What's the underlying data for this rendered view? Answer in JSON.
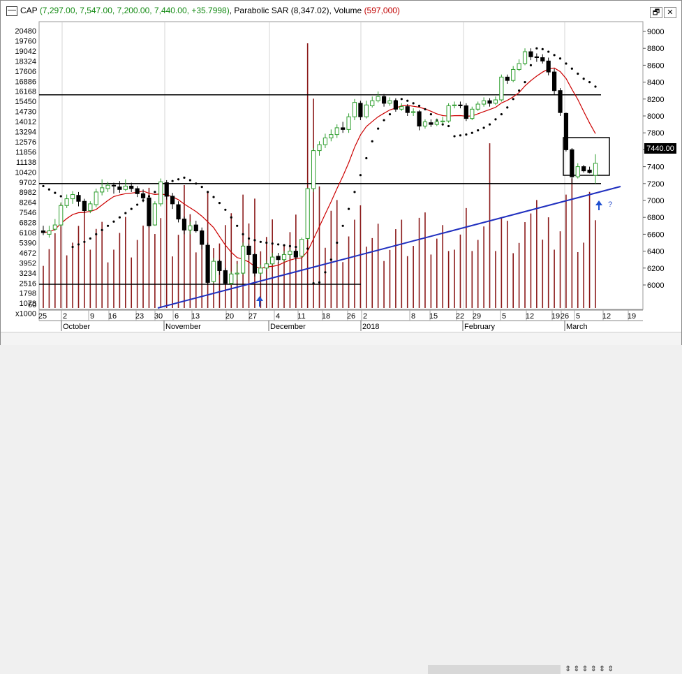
{
  "title": {
    "symbol": "CAP",
    "ohlc": "(7,297.00, 7,547.00, 7,200.00, 7,440.00, +35.7998)",
    "indicator": "Parabolic SAR",
    "indicator_value": "(8,347.02)",
    "volume_label": "Volume",
    "volume_value": "(597,000)"
  },
  "window_buttons": [
    "🗗",
    "✕"
  ],
  "left_axis": {
    "labels": [
      "20480",
      "19760",
      "19042",
      "18324",
      "17606",
      "16886",
      "16168",
      "15450",
      "14730",
      "14012",
      "13294",
      "12576",
      "11856",
      "11138",
      "10420",
      "9702",
      "8982",
      "8264",
      "7546",
      "6828",
      "6108",
      "5390",
      "4672",
      "3952",
      "3234",
      "2516",
      "1798",
      "1078",
      "x1000"
    ],
    "multiplier_tail": "60"
  },
  "right_axis": {
    "labels": [
      "9000",
      "8800",
      "8600",
      "8400",
      "8200",
      "8000",
      "7800",
      "7600",
      "7400",
      "7200",
      "7000",
      "6800",
      "6600",
      "6400",
      "6200",
      "6000"
    ],
    "last_price": "7440.00"
  },
  "date_axis": {
    "day_labels": [
      "25",
      "2",
      "9",
      "16",
      "23",
      "30",
      "6",
      "13",
      "20",
      "27",
      "4",
      "11",
      "18",
      "26",
      "2",
      "8",
      "15",
      "22",
      "29",
      "5",
      "12",
      "19",
      "26",
      "5",
      "12",
      "19"
    ],
    "month_labels": [
      "October",
      "November",
      "December",
      "2018",
      "February",
      "March"
    ]
  },
  "annotation": "?",
  "colors": {
    "up_candle": "#2e9e2e",
    "down_candle": "#000000",
    "volume": "#8b1a1a",
    "moving_average": "#cc0000",
    "trendline": "#1f2fbf",
    "sar": "#000000"
  },
  "bottom_bar_icons": "⇕⇕⇕⇕⇕⇕",
  "chart_data": {
    "type": "candlestick",
    "price_range": [
      5800,
      9100
    ],
    "volume_range": [
      0,
      20480
    ],
    "horizontal_levels": [
      8250,
      7200
    ],
    "candles": [
      [
        6640,
        6620,
        6700,
        6590
      ],
      [
        6600,
        6640,
        6700,
        6560
      ],
      [
        6660,
        6710,
        6780,
        6640
      ],
      [
        6710,
        6940,
        6980,
        6690
      ],
      [
        6940,
        7020,
        7070,
        6910
      ],
      [
        7020,
        7070,
        7110,
        6960
      ],
      [
        7060,
        6990,
        7100,
        6930
      ],
      [
        6990,
        6880,
        7020,
        6850
      ],
      [
        6880,
        6960,
        6990,
        6850
      ],
      [
        6950,
        7100,
        7140,
        6920
      ],
      [
        7100,
        7150,
        7250,
        7060
      ],
      [
        7140,
        7180,
        7220,
        7100
      ],
      [
        7180,
        7170,
        7210,
        7080
      ],
      [
        7160,
        7130,
        7230,
        7090
      ],
      [
        7130,
        7170,
        7250,
        7110
      ],
      [
        7170,
        7140,
        7210,
        7100
      ],
      [
        7140,
        7080,
        7170,
        7040
      ],
      [
        7080,
        7030,
        7130,
        6980
      ],
      [
        7030,
        6700,
        7060,
        6680
      ],
      [
        6710,
        6960,
        6990,
        6700
      ],
      [
        6960,
        7220,
        7260,
        6930
      ],
      [
        7210,
        7050,
        7240,
        7010
      ],
      [
        7050,
        6960,
        7090,
        6900
      ],
      [
        6950,
        6780,
        6990,
        6740
      ],
      [
        6780,
        6650,
        6810,
        6600
      ],
      [
        6650,
        6700,
        6750,
        6600
      ],
      [
        6710,
        6640,
        6760,
        6620
      ],
      [
        6640,
        6480,
        6680,
        6420
      ],
      [
        6470,
        6030,
        6500,
        6000
      ],
      [
        6040,
        6280,
        6320,
        6020
      ],
      [
        6280,
        6170,
        6300,
        6120
      ],
      [
        6170,
        6020,
        6200,
        6000
      ],
      [
        6020,
        6130,
        6160,
        6000
      ],
      [
        6130,
        6140,
        6250,
        6060
      ],
      [
        6140,
        6460,
        6500,
        6120
      ],
      [
        6460,
        6360,
        6490,
        6300
      ],
      [
        6360,
        6140,
        6380,
        6100
      ],
      [
        6140,
        6200,
        6240,
        6110
      ],
      [
        6200,
        6250,
        6290,
        6180
      ],
      [
        6250,
        6330,
        6380,
        6230
      ],
      [
        6340,
        6300,
        6380,
        6260
      ],
      [
        6300,
        6360,
        6400,
        6270
      ],
      [
        6360,
        6400,
        6430,
        6320
      ],
      [
        6400,
        6330,
        6420,
        6290
      ],
      [
        6340,
        6540,
        6560,
        6320
      ],
      [
        6550,
        7140,
        7150,
        6530
      ],
      [
        7140,
        7590,
        7620,
        7100
      ],
      [
        7590,
        7660,
        7700,
        7530
      ],
      [
        7660,
        7740,
        7790,
        7620
      ],
      [
        7740,
        7780,
        7840,
        7700
      ],
      [
        7780,
        7860,
        7900,
        7740
      ],
      [
        7860,
        7840,
        7930,
        7800
      ],
      [
        7840,
        7990,
        8030,
        7800
      ],
      [
        7990,
        8160,
        8200,
        7950
      ],
      [
        8150,
        7990,
        8180,
        7950
      ],
      [
        7990,
        8130,
        8180,
        7970
      ],
      [
        8120,
        8180,
        8230,
        8100
      ],
      [
        8180,
        8230,
        8290,
        8160
      ],
      [
        8230,
        8150,
        8260,
        8110
      ],
      [
        8150,
        8180,
        8220,
        8120
      ],
      [
        8180,
        8080,
        8210,
        8050
      ],
      [
        8080,
        8110,
        8150,
        8060
      ],
      [
        8110,
        8040,
        8140,
        8000
      ],
      [
        8040,
        8050,
        8090,
        8000
      ],
      [
        8050,
        7880,
        8070,
        7830
      ],
      [
        7880,
        7930,
        7960,
        7850
      ],
      [
        7920,
        7900,
        7960,
        7870
      ],
      [
        7900,
        7930,
        7970,
        7880
      ],
      [
        7930,
        7940,
        7990,
        7900
      ],
      [
        7940,
        8120,
        8150,
        7920
      ],
      [
        8120,
        8130,
        8170,
        8090
      ],
      [
        8130,
        8120,
        8170,
        8090
      ],
      [
        8120,
        7970,
        8150,
        7940
      ],
      [
        7970,
        8080,
        8110,
        7950
      ],
      [
        8080,
        8140,
        8170,
        8060
      ],
      [
        8140,
        8180,
        8220,
        8110
      ],
      [
        8180,
        8150,
        8210,
        8110
      ],
      [
        8150,
        8190,
        8230,
        8130
      ],
      [
        8190,
        8460,
        8490,
        8170
      ],
      [
        8460,
        8420,
        8490,
        8380
      ],
      [
        8420,
        8550,
        8590,
        8400
      ],
      [
        8550,
        8620,
        8670,
        8530
      ],
      [
        8620,
        8760,
        8800,
        8600
      ],
      [
        8760,
        8700,
        8800,
        8660
      ],
      [
        8700,
        8690,
        8740,
        8640
      ],
      [
        8690,
        8650,
        8730,
        8620
      ],
      [
        8650,
        8520,
        8690,
        8480
      ],
      [
        8520,
        8300,
        8560,
        8250
      ],
      [
        8300,
        8040,
        8330,
        8000
      ],
      [
        8030,
        7600,
        8040,
        7580
      ],
      [
        7600,
        7280,
        7620,
        7200
      ],
      [
        7280,
        7400,
        7440,
        7260
      ],
      [
        7400,
        7350,
        7420,
        7330
      ],
      [
        7360,
        7330,
        7400,
        7320
      ],
      [
        7297,
        7440,
        7547,
        7200
      ]
    ],
    "parabolic_sar": [
      7170,
      7130,
      7090,
      7050,
      7010,
      6450,
      6480,
      6510,
      6550,
      6600,
      6650,
      6700,
      6750,
      6800,
      6850,
      6900,
      6950,
      7000,
      7050,
      7100,
      7150,
      7200,
      7230,
      7250,
      7270,
      7240,
      7200,
      7160,
      7100,
      7040,
      6970,
      6890,
      6800,
      6700,
      6600,
      6550,
      6530,
      6510,
      6500,
      6490,
      6480,
      6470,
      6460,
      6450,
      6440,
      6430,
      6020,
      6030,
      6150,
      6300,
      6500,
      6700,
      6900,
      7100,
      7300,
      7500,
      7700,
      7850,
      7950,
      8020,
      8180,
      8200,
      8180,
      8150,
      8120,
      8080,
      8020,
      7950,
      7900,
      7880,
      7760,
      7770,
      7780,
      7800,
      7830,
      7860,
      7900,
      7960,
      8020,
      8100,
      8200,
      8300,
      8400,
      8600,
      8800,
      8790,
      8760,
      8720,
      8680,
      8620,
      8560,
      8500,
      8440,
      8400,
      8347
    ]
  }
}
